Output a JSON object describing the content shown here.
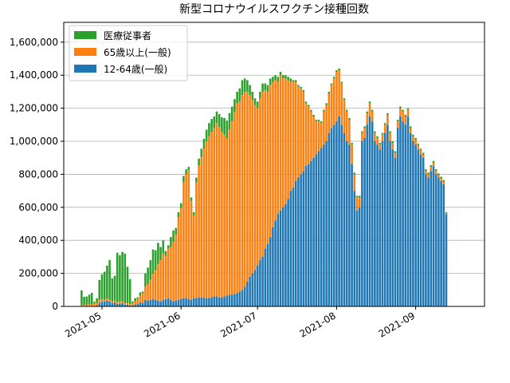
{
  "chart_data": {
    "type": "bar",
    "stacked": true,
    "title": "新型コロナウイルスワクチン接種回数",
    "xlabel": "",
    "ylabel": "",
    "ylim": [
      0,
      1720000
    ],
    "yticks": [
      0,
      200000,
      400000,
      600000,
      800000,
      1000000,
      1200000,
      1400000,
      1600000
    ],
    "ytick_labels": [
      "0",
      "200,000",
      "400,000",
      "600,000",
      "800,000",
      "1,000,000",
      "1,200,000",
      "1,400,000",
      "1,600,000"
    ],
    "xlim": [
      "2021-04-16",
      "2021-09-28"
    ],
    "xticks": [
      "2021-05-01",
      "2021-06-01",
      "2021-07-01",
      "2021-08-01",
      "2021-09-01"
    ],
    "xtick_labels": [
      "2021-05",
      "2021-06",
      "2021-07",
      "2021-08",
      "2021-09"
    ],
    "grid": "y",
    "legend_position": "top-left",
    "legend": [
      {
        "name": "医療従事者",
        "color": "#2ca02c"
      },
      {
        "name": "65歳以上(一般)",
        "color": "#ff7f0e"
      },
      {
        "name": "12-64歳(一般)",
        "color": "#1f77b4"
      }
    ],
    "series_order_bottom_to_top": [
      "12-64歳(一般)",
      "65歳以上(一般)",
      "医療従事者"
    ],
    "segments": [
      {
        "name": "12-64歳(一般)",
        "color": "#1f77b4",
        "values": [
          {
            "start": "2021-04-23",
            "end": "2021-05-05",
            "values": [
              2000,
              3000,
              5000,
              3000,
              2000,
              3000,
              5000,
              20000,
              30000,
              30000,
              35000,
              30000,
              20000
            ]
          },
          {
            "start": "2021-05-06",
            "end": "2021-05-31",
            "values": [
              25000,
              15000,
              15000,
              20000,
              10000,
              10000,
              5000,
              5000,
              10000,
              15000,
              25000,
              20000,
              40000,
              35000,
              40000,
              45000,
              40000,
              35000,
              30000,
              40000,
              45000,
              50000,
              40000,
              30000,
              35000,
              40000
            ]
          },
          {
            "start": "2021-06-01",
            "end": "2021-06-30",
            "values": [
              45000,
              50000,
              50000,
              45000,
              40000,
              50000,
              50000,
              55000,
              55000,
              55000,
              50000,
              50000,
              55000,
              60000,
              60000,
              55000,
              55000,
              60000,
              65000,
              70000,
              70000,
              75000,
              80000,
              90000,
              100000,
              120000,
              150000,
              180000,
              200000,
              220000
            ]
          },
          {
            "start": "2021-07-01",
            "end": "2021-07-31",
            "values": [
              250000,
              280000,
              300000,
              350000,
              380000,
              420000,
              480000,
              520000,
              560000,
              580000,
              600000,
              620000,
              650000,
              700000,
              720000,
              760000,
              780000,
              800000,
              820000,
              850000,
              860000,
              880000,
              900000,
              920000,
              940000,
              960000,
              980000,
              1000000,
              1050000,
              1080000,
              1100000
            ]
          },
          {
            "start": "2021-08-01",
            "end": "2021-08-31",
            "values": [
              1120000,
              1150000,
              1100000,
              1050000,
              1000000,
              980000,
              860000,
              700000,
              580000,
              600000,
              1000000,
              1020000,
              1100000,
              1150000,
              1120000,
              1000000,
              980000,
              950000,
              1000000,
              1050000,
              1100000,
              1000000,
              950000,
              900000,
              1080000,
              1150000,
              1120000,
              1100000,
              1150000,
              1050000,
              1000000
            ]
          },
          {
            "start": "2021-09-01",
            "end": "2021-09-13",
            "values": [
              980000,
              950000,
              920000,
              900000,
              800000,
              780000,
              820000,
              850000,
              800000,
              780000,
              760000,
              740000,
              560000
            ]
          }
        ]
      },
      {
        "name": "65歳以上(一般)",
        "color": "#ff7f0e",
        "values": [
          {
            "start": "2021-04-23",
            "end": "2021-05-05",
            "values": [
              5000,
              5000,
              5000,
              8000,
              10000,
              15000,
              15000,
              20000,
              15000,
              10000,
              12000,
              10000,
              10000
            ]
          },
          {
            "start": "2021-05-06",
            "end": "2021-05-31",
            "values": [
              10000,
              10000,
              15000,
              10000,
              10000,
              10000,
              10000,
              15000,
              20000,
              30000,
              40000,
              60000,
              80000,
              100000,
              120000,
              150000,
              180000,
              220000,
              250000,
              280000,
              260000,
              300000,
              320000,
              360000,
              400000,
              500000
            ]
          },
          {
            "start": "2021-06-01",
            "end": "2021-06-30",
            "values": [
              550000,
              700000,
              750000,
              780000,
              600000,
              500000,
              700000,
              800000,
              850000,
              900000,
              950000,
              980000,
              1000000,
              1020000,
              1050000,
              1030000,
              1000000,
              980000,
              950000,
              1000000,
              1050000,
              1100000,
              1150000,
              1150000,
              1180000,
              1180000,
              1150000,
              1100000,
              1050000,
              1000000
            ]
          },
          {
            "start": "2021-07-01",
            "end": "2021-07-31",
            "values": [
              950000,
              980000,
              1000000,
              960000,
              920000,
              920000,
              880000,
              850000,
              800000,
              820000,
              780000,
              760000,
              720000,
              660000,
              640000,
              600000,
              550000,
              520000,
              480000,
              380000,
              350000,
              300000,
              250000,
              200000,
              180000,
              150000,
              200000,
              220000,
              240000,
              260000,
              280000
            ]
          },
          {
            "start": "2021-08-01",
            "end": "2021-08-31",
            "values": [
              300000,
              280000,
              250000,
              200000,
              180000,
              150000,
              120000,
              100000,
              80000,
              60000,
              50000,
              60000,
              70000,
              80000,
              60000,
              50000,
              40000,
              30000,
              40000,
              50000,
              60000,
              50000,
              40000,
              30000,
              40000,
              50000,
              60000,
              50000,
              40000,
              30000,
              30000
            ]
          },
          {
            "start": "2021-09-01",
            "end": "2021-09-13",
            "values": [
              30000,
              25000,
              25000,
              20000,
              20000,
              20000,
              25000,
              20000,
              20000,
              15000,
              15000,
              15000,
              5000
            ]
          }
        ]
      },
      {
        "name": "医療従事者",
        "color": "#2ca02c",
        "values": [
          {
            "start": "2021-04-23",
            "end": "2021-05-05",
            "values": [
              90000,
              50000,
              50000,
              60000,
              70000,
              10000,
              30000,
              120000,
              150000,
              170000,
              200000,
              240000,
              140000
            ]
          },
          {
            "start": "2021-05-06",
            "end": "2021-05-31",
            "values": [
              150000,
              300000,
              280000,
              300000,
              300000,
              220000,
              150000,
              10000,
              20000,
              10000,
              20000,
              10000,
              80000,
              100000,
              120000,
              150000,
              120000,
              130000,
              80000,
              80000,
              30000,
              20000,
              60000,
              70000,
              40000,
              30000
            ]
          },
          {
            "start": "2021-06-01",
            "end": "2021-06-30",
            "values": [
              30000,
              40000,
              30000,
              20000,
              20000,
              20000,
              30000,
              40000,
              50000,
              60000,
              70000,
              80000,
              80000,
              70000,
              70000,
              80000,
              90000,
              100000,
              110000,
              100000,
              90000,
              80000,
              70000,
              80000,
              90000,
              80000,
              70000,
              60000,
              50000,
              40000
            ]
          },
          {
            "start": "2021-07-01",
            "end": "2021-07-31",
            "values": [
              40000,
              40000,
              50000,
              40000,
              40000,
              40000,
              30000,
              30000,
              30000,
              20000,
              20000,
              20000,
              20000,
              20000,
              10000,
              10000,
              10000,
              10000,
              10000,
              10000,
              10000,
              10000,
              10000,
              10000,
              10000,
              10000,
              10000,
              10000,
              10000,
              10000,
              10000
            ]
          },
          {
            "start": "2021-08-01",
            "end": "2021-08-31",
            "values": [
              10000,
              10000,
              10000,
              10000,
              10000,
              10000,
              10000,
              10000,
              10000,
              10000,
              10000,
              10000,
              10000,
              10000,
              10000,
              10000,
              10000,
              10000,
              10000,
              10000,
              10000,
              10000,
              10000,
              10000,
              10000,
              10000,
              10000,
              10000,
              10000,
              10000,
              10000
            ]
          },
          {
            "start": "2021-09-01",
            "end": "2021-09-13",
            "values": [
              10000,
              10000,
              10000,
              10000,
              10000,
              10000,
              10000,
              10000,
              10000,
              10000,
              10000,
              10000,
              5000
            ]
          }
        ]
      }
    ]
  }
}
